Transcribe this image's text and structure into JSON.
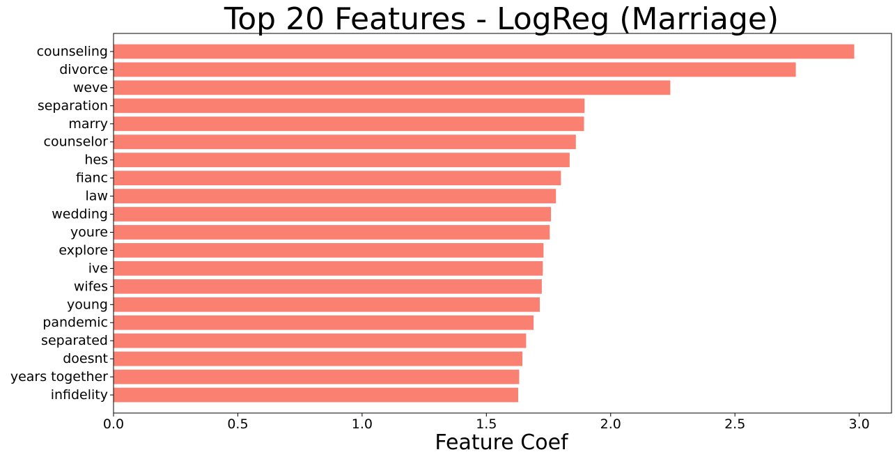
{
  "chart_data": {
    "type": "bar",
    "orientation": "horizontal",
    "title": "Top 20 Features - LogReg (Marriage)",
    "xlabel": "Feature Coef",
    "ylabel": "",
    "xlim": [
      0,
      3.13
    ],
    "xticks": [
      0.0,
      0.5,
      1.0,
      1.5,
      2.0,
      2.5,
      3.0
    ],
    "xtick_labels": [
      "0.0",
      "0.5",
      "1.0",
      "1.5",
      "2.0",
      "2.5",
      "3.0"
    ],
    "grid": false,
    "bar_color": "#fa8072",
    "categories": [
      "counseling",
      "divorce",
      "weve",
      "separation",
      "marry",
      "counselor",
      "hes",
      "fianc",
      "law",
      "wedding",
      "youre",
      "explore",
      "ive",
      "wifes",
      "young",
      "pandemic",
      "separated",
      "doesnt",
      "years together",
      "infidelity"
    ],
    "values": [
      2.98,
      2.745,
      2.24,
      1.895,
      1.893,
      1.86,
      1.835,
      1.8,
      1.78,
      1.76,
      1.755,
      1.73,
      1.727,
      1.723,
      1.715,
      1.69,
      1.66,
      1.645,
      1.632,
      1.628
    ]
  }
}
